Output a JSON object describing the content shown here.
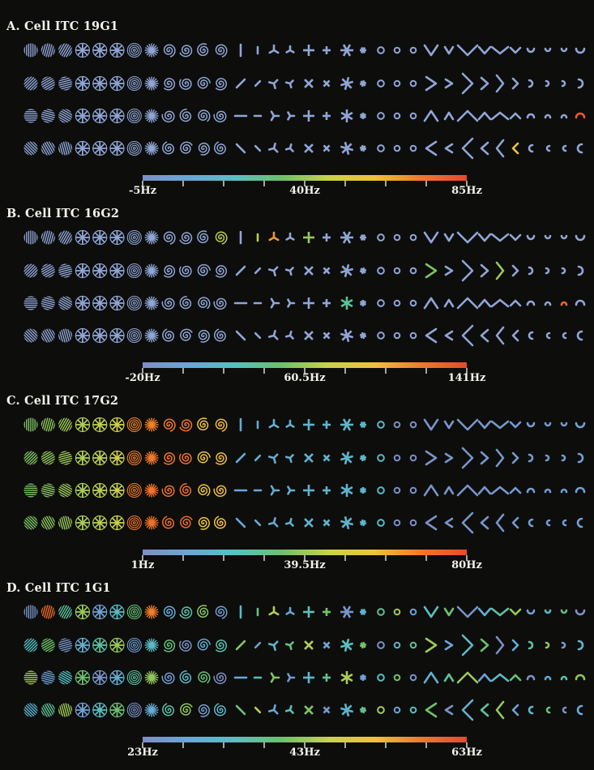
{
  "figure": {
    "colormap": [
      "#7d8fc4",
      "#6aa6d8",
      "#55c1c2",
      "#6cc16a",
      "#c8d24a",
      "#f0c13a",
      "#f07a2a",
      "#e64a2a"
    ],
    "stimulus_base_color": "#8fa6d6",
    "stimulus_groups": [
      "gratings-and-polar",
      "line-segments",
      "corners-and-arcs"
    ],
    "row_orientations": [
      "0deg",
      "45deg",
      "90deg",
      "135deg"
    ],
    "stimuli_per_row": 43
  },
  "panels": [
    {
      "id": "A",
      "title": "A. Cell ITC 19G1",
      "colorbar": {
        "min_label": "-5Hz",
        "mid_label": "40Hz",
        "max_label": "85Hz",
        "min": -5,
        "mid": 40,
        "max": 85
      },
      "note": "responses mostly low (blue); a few strong responses to corners"
    },
    {
      "id": "B",
      "title": "B. Cell ITC 16G2",
      "colorbar": {
        "min_label": "-20Hz",
        "mid_label": "60.5Hz",
        "max_label": "141Hz",
        "min": -20,
        "mid": 60.5,
        "max": 141
      }
    },
    {
      "id": "C",
      "title": "C. Cell ITC 17G2",
      "colorbar": {
        "min_label": "1Hz",
        "mid_label": "39.5Hz",
        "max_label": "80Hz",
        "min": 1,
        "mid": 39.5,
        "max": 80
      }
    },
    {
      "id": "D",
      "title": "D. Cell ITC 1G1",
      "colorbar": {
        "min_label": "23Hz",
        "mid_label": "43Hz",
        "max_label": "63Hz",
        "min": 23,
        "mid": 43,
        "max": 63
      }
    }
  ]
}
